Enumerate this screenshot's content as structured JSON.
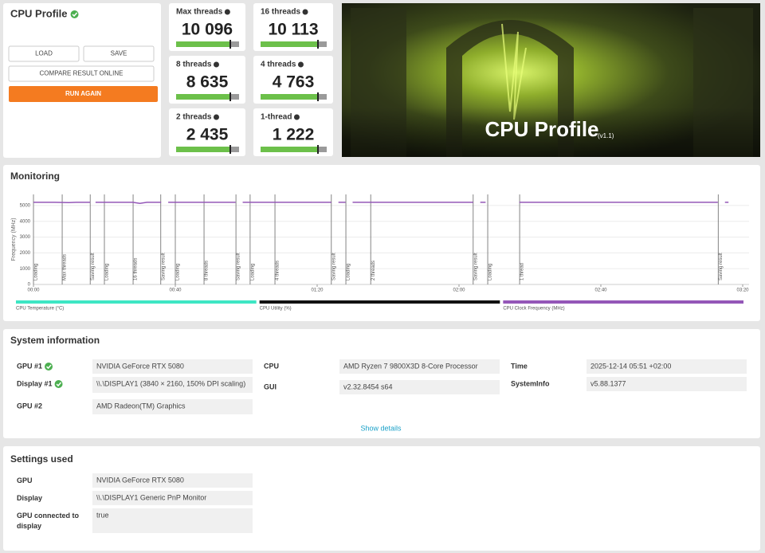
{
  "header": {
    "title": "CPU Profile",
    "buttons": [
      "LOAD",
      "SAVE",
      "COMPARE RESULT ONLINE",
      "RUN AGAIN"
    ]
  },
  "scores": [
    {
      "label": "Max threads",
      "value": "10 096"
    },
    {
      "label": "16 threads",
      "value": "10 113"
    },
    {
      "label": "8 threads",
      "value": "8 635"
    },
    {
      "label": "4 threads",
      "value": "4 763"
    },
    {
      "label": "2 threads",
      "value": "2 435"
    },
    {
      "label": "1-thread",
      "value": "1 222"
    }
  ],
  "hero": {
    "title": "CPU Profile",
    "version": "(v1.1)"
  },
  "monitoring": {
    "title": "Monitoring",
    "chart_data": {
      "type": "line",
      "y_label": "Frequency (MHz)",
      "x": [
        0,
        6,
        10,
        12,
        16,
        17,
        17.5,
        28,
        30,
        32,
        36,
        37,
        38,
        57,
        58,
        59,
        84,
        85,
        86,
        88,
        89,
        90,
        124,
        125,
        126,
        127.5,
        128.5,
        137,
        193,
        194,
        195,
        196
      ],
      "series": [
        {
          "name": "CPU Temperature (°C)",
          "color": "#3ee6c4"
        },
        {
          "name": "CPU Utility (%)",
          "color": "#111111"
        },
        {
          "name": "CPU Clock Frequency (MHz)",
          "color": "#9457b8",
          "values": [
            5200,
            5200,
            5180,
            5200,
            5200,
            null,
            5200,
            5200,
            5130,
            5200,
            5200,
            null,
            5200,
            5200,
            null,
            5200,
            5200,
            null,
            5200,
            5200,
            null,
            5200,
            5200,
            null,
            5200,
            5200,
            null,
            5200,
            5200,
            null,
            5200,
            5200
          ]
        }
      ],
      "events": [
        {
          "x": 0,
          "label": "Loading"
        },
        {
          "x": 8.1,
          "label": "Max threads"
        },
        {
          "x": 16,
          "label": "Saving result"
        },
        {
          "x": 20,
          "label": "Loading"
        },
        {
          "x": 28.1,
          "label": "16 threads"
        },
        {
          "x": 35.9,
          "label": "Saving result"
        },
        {
          "x": 40,
          "label": "Loading"
        },
        {
          "x": 48.1,
          "label": "8 threads"
        },
        {
          "x": 57.1,
          "label": "Saving result"
        },
        {
          "x": 61.1,
          "label": "Loading"
        },
        {
          "x": 68.1,
          "label": "4 threads"
        },
        {
          "x": 84,
          "label": "Saving result"
        },
        {
          "x": 88.1,
          "label": "Loading"
        },
        {
          "x": 95.1,
          "label": "2 threads"
        },
        {
          "x": 124,
          "label": "Saving result"
        },
        {
          "x": 128.1,
          "label": "Loading"
        },
        {
          "x": 137.1,
          "label": "1 thread"
        },
        {
          "x": 193.1,
          "label": "Saving result"
        }
      ],
      "xlim": [
        0,
        200
      ],
      "xticks": [
        {
          "value": 0,
          "label": "00:00"
        },
        {
          "value": 40,
          "label": "00:40"
        },
        {
          "value": 80,
          "label": "01:20"
        },
        {
          "value": 120,
          "label": "02:00"
        },
        {
          "value": 160,
          "label": "02:40"
        },
        {
          "value": 200,
          "label": "03:20"
        }
      ],
      "ylim": [
        0,
        5700
      ],
      "yticks": [
        0,
        1000,
        2000,
        3000,
        4000,
        5000
      ],
      "grid": true
    }
  },
  "system_info": {
    "title": "System information",
    "rows": [
      {
        "label": "GPU #1",
        "value": "NVIDIA GeForce RTX 5080",
        "verified": true
      },
      {
        "label": "Display #1",
        "value": "\\\\.\\DISPLAY1 (3840 × 2160, 150% DPI scaling)",
        "verified": true
      },
      {
        "label": "GPU #2",
        "value": "AMD Radeon(TM) Graphics"
      },
      {
        "label": "CPU",
        "value": "AMD Ryzen 7 9800X3D 8-Core Processor"
      },
      {
        "label": "GUI",
        "value": "v2.32.8454 s64"
      },
      {
        "label": "Time",
        "value": "2025-12-14 05:51 +02:00"
      },
      {
        "label": "SystemInfo",
        "value": "v5.88.1377"
      }
    ],
    "show_details": "Show details"
  },
  "settings": {
    "title": "Settings used",
    "rows": [
      {
        "label": "GPU",
        "value": "NVIDIA GeForce RTX 5080"
      },
      {
        "label": "Display",
        "value": "\\\\.\\DISPLAY1 Generic PnP Monitor"
      },
      {
        "label": "GPU connected to display",
        "value": "true"
      }
    ]
  }
}
